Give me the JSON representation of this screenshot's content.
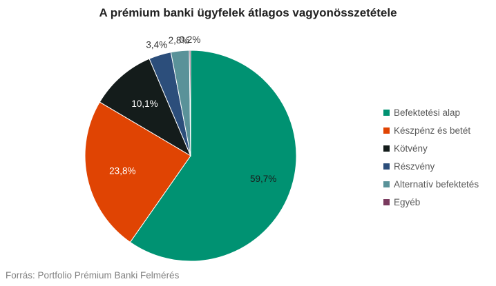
{
  "chart_data": {
    "type": "pie",
    "title": "A prémium banki ügyfelek átlagos vagyonösszetétele",
    "categories": [
      "Befektetési alap",
      "Készpénz és betét",
      "Kötvény",
      "Részvény",
      "Alternatív befektetés",
      "Egyéb"
    ],
    "values": [
      59.7,
      23.8,
      10.1,
      3.4,
      2.8,
      0.2
    ],
    "labels": [
      "59,7%",
      "23,8%",
      "10,1%",
      "3,4%",
      "2,8%",
      "0,2%"
    ],
    "colors": [
      "#009272",
      "#e04403",
      "#141c1b",
      "#2c4e7b",
      "#5a9299",
      "#7a3a5e"
    ],
    "legend_position": "right",
    "source": "Forrás: Portfolio Prémium Banki Felmérés"
  }
}
